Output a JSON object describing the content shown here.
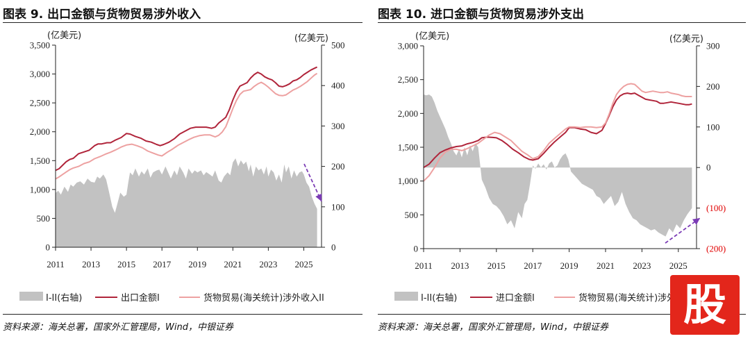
{
  "chart_data": [
    {
      "type": "area+line",
      "title": "图表 9. 出口金额与货物贸易涉外收入",
      "source": "资料来源：海关总署，国家外汇管理局，Wind，中银证券",
      "left_unit": "(亿美元)",
      "right_unit": "(亿美元)",
      "left_ylim": [
        0,
        3500
      ],
      "right_ylim": [
        0,
        500
      ],
      "left_ticks": [
        "0",
        "500",
        "1,000",
        "1,500",
        "2,000",
        "2,500",
        "3,000",
        "3,500"
      ],
      "right_ticks": [
        "0",
        "100",
        "200",
        "300",
        "400",
        "500"
      ],
      "xlim": [
        2011,
        2026
      ],
      "x_ticks": [
        "2011",
        "2013",
        "2015",
        "2017",
        "2019",
        "2021",
        "2023",
        "2025"
      ],
      "series": [
        {
          "name": "I-II(右轴)",
          "axis": "right",
          "kind": "area",
          "color": "#c2c2c2",
          "x": [
            2011.0,
            2011.15,
            2011.3,
            2011.5,
            2011.7,
            2011.85,
            2012.0,
            2012.2,
            2012.4,
            2012.6,
            2012.8,
            2013.0,
            2013.2,
            2013.35,
            2013.5,
            2013.7,
            2013.85,
            2014.0,
            2014.2,
            2014.35,
            2014.5,
            2014.65,
            2014.85,
            2015.0,
            2015.1,
            2015.2,
            2015.35,
            2015.5,
            2015.7,
            2015.85,
            2016.0,
            2016.2,
            2016.35,
            2016.5,
            2016.7,
            2016.85,
            2017.0,
            2017.2,
            2017.35,
            2017.5,
            2017.7,
            2017.85,
            2018.0,
            2018.2,
            2018.35,
            2018.5,
            2018.7,
            2018.85,
            2019.0,
            2019.2,
            2019.35,
            2019.5,
            2019.7,
            2019.85,
            2020.0,
            2020.2,
            2020.35,
            2020.5,
            2020.7,
            2020.85,
            2021.0,
            2021.15,
            2021.3,
            2021.45,
            2021.6,
            2021.75,
            2021.9,
            2022.0,
            2022.15,
            2022.3,
            2022.45,
            2022.6,
            2022.75,
            2022.9,
            2023.0,
            2023.15,
            2023.3,
            2023.45,
            2023.6,
            2023.75,
            2023.9,
            2024.0,
            2024.15,
            2024.3,
            2024.45,
            2024.6,
            2024.75,
            2024.9,
            2025.0,
            2025.15,
            2025.3,
            2025.45,
            2025.6,
            2025.75
          ],
          "values": [
            134,
            140,
            130,
            150,
            137,
            155,
            150,
            160,
            163,
            155,
            170,
            162,
            160,
            175,
            170,
            180,
            168,
            140,
            100,
            85,
            110,
            135,
            125,
            130,
            160,
            185,
            178,
            195,
            175,
            188,
            180,
            195,
            172,
            185,
            190,
            192,
            180,
            200,
            185,
            170,
            190,
            178,
            200,
            185,
            170,
            195,
            182,
            190,
            185,
            190,
            178,
            186,
            180,
            175,
            190,
            165,
            160,
            175,
            185,
            178,
            210,
            220,
            200,
            215,
            205,
            212,
            188,
            205,
            175,
            200,
            190,
            195,
            180,
            200,
            175,
            192,
            185,
            165,
            180,
            160,
            205,
            185,
            200,
            170,
            190,
            175,
            185,
            188,
            180,
            160,
            150,
            125,
            108,
            95
          ]
        },
        {
          "name": "出口金额I",
          "axis": "left",
          "kind": "line",
          "color": "#b0243a",
          "x": [
            2011.0,
            2011.2,
            2011.4,
            2011.6,
            2011.8,
            2012.0,
            2012.3,
            2012.6,
            2012.9,
            2013.2,
            2013.4,
            2013.6,
            2013.9,
            2014.1,
            2014.4,
            2014.7,
            2015.0,
            2015.2,
            2015.5,
            2015.8,
            2016.1,
            2016.4,
            2016.7,
            2016.9,
            2017.1,
            2017.4,
            2017.7,
            2018.0,
            2018.3,
            2018.6,
            2018.9,
            2019.2,
            2019.5,
            2019.8,
            2020.0,
            2020.2,
            2020.4,
            2020.6,
            2020.8,
            2021.0,
            2021.2,
            2021.4,
            2021.6,
            2021.8,
            2022.0,
            2022.2,
            2022.4,
            2022.6,
            2022.8,
            2023.0,
            2023.2,
            2023.4,
            2023.6,
            2023.8,
            2024.0,
            2024.2,
            2024.4,
            2024.6,
            2024.8,
            2025.0,
            2025.2,
            2025.4,
            2025.6,
            2025.75
          ],
          "values": [
            1330,
            1360,
            1420,
            1480,
            1520,
            1540,
            1620,
            1650,
            1680,
            1760,
            1790,
            1790,
            1810,
            1810,
            1860,
            1900,
            1970,
            1960,
            1920,
            1890,
            1840,
            1820,
            1780,
            1760,
            1780,
            1820,
            1880,
            1960,
            2010,
            2060,
            2080,
            2080,
            2080,
            2060,
            2080,
            2150,
            2200,
            2250,
            2380,
            2550,
            2690,
            2790,
            2820,
            2850,
            2930,
            2990,
            3030,
            3000,
            2950,
            2920,
            2900,
            2850,
            2790,
            2780,
            2800,
            2830,
            2880,
            2900,
            2940,
            2990,
            3030,
            3070,
            3100,
            3120
          ]
        },
        {
          "name": "货物贸易(海关统计)涉外收入II",
          "axis": "right",
          "kind": "line",
          "color": "#eda1a1",
          "x": [
            2011.0,
            2011.2,
            2011.4,
            2011.6,
            2011.8,
            2012.0,
            2012.3,
            2012.6,
            2012.9,
            2013.2,
            2013.5,
            2013.8,
            2014.1,
            2014.4,
            2014.7,
            2015.0,
            2015.3,
            2015.6,
            2015.9,
            2016.2,
            2016.5,
            2016.8,
            2017.0,
            2017.3,
            2017.6,
            2017.9,
            2018.2,
            2018.5,
            2018.8,
            2019.1,
            2019.4,
            2019.7,
            2020.0,
            2020.2,
            2020.4,
            2020.6,
            2020.8,
            2021.0,
            2021.2,
            2021.4,
            2021.6,
            2021.8,
            2022.0,
            2022.2,
            2022.4,
            2022.6,
            2022.8,
            2023.0,
            2023.2,
            2023.4,
            2023.6,
            2023.8,
            2024.0,
            2024.2,
            2024.4,
            2024.6,
            2024.8,
            2025.0,
            2025.2,
            2025.4,
            2025.6,
            2025.75
          ],
          "values": [
            169,
            174,
            180,
            186,
            192,
            196,
            200,
            207,
            211,
            219,
            224,
            230,
            235,
            241,
            248,
            253,
            255,
            251,
            246,
            238,
            233,
            228,
            226,
            235,
            243,
            252,
            259,
            266,
            272,
            276,
            278,
            278,
            273,
            277,
            285,
            298,
            320,
            343,
            363,
            378,
            386,
            388,
            390,
            398,
            404,
            408,
            403,
            396,
            388,
            380,
            376,
            375,
            377,
            383,
            389,
            393,
            398,
            404,
            410,
            418,
            426,
            430
          ]
        }
      ],
      "legend": [
        "I-II(右轴)",
        "出口金额I",
        "货物贸易(海关统计)涉外收入II"
      ],
      "annotation": "purple dashed arrow pointing down"
    },
    {
      "type": "area+line",
      "title": "图表 10. 进口金额与货物贸易涉外支出",
      "source": "资料来源：海关总署，国家外汇管理局，Wind，中银证券",
      "left_unit": "(亿美元)",
      "right_unit": "(亿美元)",
      "left_ylim": [
        0,
        3000
      ],
      "right_ylim": [
        -200,
        300
      ],
      "left_ticks": [
        "0",
        "500",
        "1,000",
        "1,500",
        "2,000",
        "2,500",
        "3,000"
      ],
      "right_ticks": [
        "(200)",
        "(100)",
        "0",
        "100",
        "200",
        "300"
      ],
      "right_tick_colors": [
        "#e00000",
        "#e00000",
        "#222222",
        "#222222",
        "#222222",
        "#222222"
      ],
      "xlim": [
        2011,
        2026
      ],
      "x_ticks": [
        "2011",
        "2013",
        "2015",
        "2017",
        "2019",
        "2021",
        "2023",
        "2025"
      ],
      "series": [
        {
          "name": "I-II(右轴)",
          "axis": "right",
          "kind": "area",
          "color": "#c2c2c2",
          "x": [
            2011.0,
            2011.15,
            2011.3,
            2011.45,
            2011.6,
            2011.75,
            2011.9,
            2012.05,
            2012.2,
            2012.35,
            2012.5,
            2012.65,
            2012.8,
            2012.95,
            2013.1,
            2013.25,
            2013.4,
            2013.55,
            2013.7,
            2013.85,
            2014.0,
            2014.2,
            2014.4,
            2014.6,
            2014.8,
            2015.0,
            2015.2,
            2015.4,
            2015.6,
            2015.8,
            2016.0,
            2016.2,
            2016.4,
            2016.55,
            2016.7,
            2016.85,
            2017.0,
            2017.15,
            2017.3,
            2017.45,
            2017.6,
            2017.75,
            2017.9,
            2018.05,
            2018.2,
            2018.35,
            2018.5,
            2018.65,
            2018.8,
            2018.95,
            2019.1,
            2019.3,
            2019.5,
            2019.7,
            2019.9,
            2020.1,
            2020.3,
            2020.5,
            2020.7,
            2020.9,
            2021.1,
            2021.3,
            2021.5,
            2021.7,
            2021.9,
            2022.1,
            2022.3,
            2022.5,
            2022.7,
            2022.9,
            2023.1,
            2023.3,
            2023.5,
            2023.7,
            2023.9,
            2024.1,
            2024.3,
            2024.5,
            2024.7,
            2024.9,
            2025.1,
            2025.3,
            2025.5,
            2025.75
          ],
          "values": [
            180,
            178,
            180,
            175,
            160,
            140,
            125,
            110,
            95,
            75,
            60,
            40,
            30,
            45,
            25,
            50,
            30,
            55,
            40,
            60,
            50,
            -30,
            -50,
            -75,
            -90,
            -95,
            -105,
            -120,
            -140,
            -130,
            -150,
            -110,
            -125,
            -90,
            -80,
            -40,
            5,
            -3,
            10,
            0,
            8,
            -5,
            10,
            15,
            0,
            5,
            20,
            30,
            35,
            20,
            -10,
            -20,
            -30,
            -40,
            -45,
            -50,
            -55,
            -70,
            -75,
            -90,
            -80,
            -70,
            -95,
            -85,
            -60,
            -90,
            -110,
            -125,
            -130,
            -140,
            -145,
            -150,
            -155,
            -152,
            -160,
            -165,
            -170,
            -150,
            -160,
            -140,
            -150,
            -130,
            -115,
            -100
          ]
        },
        {
          "name": "进口金额I",
          "axis": "left",
          "kind": "line",
          "color": "#b0243a",
          "x": [
            2011.0,
            2011.3,
            2011.6,
            2011.9,
            2012.2,
            2012.5,
            2012.8,
            2013.1,
            2013.4,
            2013.7,
            2014.0,
            2014.2,
            2014.5,
            2014.8,
            2015.0,
            2015.3,
            2015.6,
            2015.9,
            2016.2,
            2016.5,
            2016.8,
            2017.0,
            2017.3,
            2017.6,
            2017.9,
            2018.2,
            2018.5,
            2018.8,
            2019.0,
            2019.3,
            2019.6,
            2019.9,
            2020.2,
            2020.5,
            2020.8,
            2021.0,
            2021.2,
            2021.4,
            2021.6,
            2021.8,
            2022.0,
            2022.2,
            2022.4,
            2022.6,
            2022.8,
            2023.0,
            2023.2,
            2023.4,
            2023.6,
            2023.8,
            2024.0,
            2024.2,
            2024.4,
            2024.6,
            2024.8,
            2025.0,
            2025.2,
            2025.4,
            2025.6,
            2025.75
          ],
          "values": [
            1200,
            1250,
            1340,
            1420,
            1460,
            1490,
            1510,
            1520,
            1550,
            1570,
            1600,
            1640,
            1650,
            1645,
            1640,
            1600,
            1540,
            1470,
            1420,
            1360,
            1320,
            1310,
            1330,
            1410,
            1500,
            1580,
            1650,
            1720,
            1790,
            1790,
            1770,
            1760,
            1720,
            1700,
            1750,
            1850,
            1970,
            2100,
            2200,
            2260,
            2290,
            2300,
            2290,
            2300,
            2270,
            2240,
            2210,
            2200,
            2190,
            2180,
            2150,
            2150,
            2160,
            2170,
            2160,
            2150,
            2140,
            2130,
            2130,
            2140
          ]
        },
        {
          "name": "货物贸易(海关统计)涉外支出II",
          "axis": "left",
          "kind": "line",
          "color": "#eda1a1",
          "x": [
            2011.0,
            2011.3,
            2011.6,
            2011.9,
            2012.2,
            2012.5,
            2012.8,
            2013.1,
            2013.4,
            2013.7,
            2014.0,
            2014.3,
            2014.6,
            2014.9,
            2015.2,
            2015.5,
            2015.8,
            2016.1,
            2016.4,
            2016.7,
            2017.0,
            2017.3,
            2017.6,
            2017.9,
            2018.2,
            2018.5,
            2018.8,
            2019.0,
            2019.3,
            2019.6,
            2019.9,
            2020.2,
            2020.5,
            2020.8,
            2021.0,
            2021.2,
            2021.4,
            2021.6,
            2021.8,
            2022.0,
            2022.2,
            2022.4,
            2022.6,
            2022.8,
            2023.0,
            2023.2,
            2023.4,
            2023.6,
            2023.8,
            2024.0,
            2024.2,
            2024.4,
            2024.6,
            2024.8,
            2025.0,
            2025.2,
            2025.4,
            2025.6,
            2025.75
          ],
          "values": [
            1000,
            1080,
            1200,
            1340,
            1430,
            1470,
            1470,
            1450,
            1480,
            1520,
            1560,
            1620,
            1680,
            1720,
            1700,
            1650,
            1600,
            1520,
            1440,
            1390,
            1330,
            1360,
            1450,
            1560,
            1630,
            1700,
            1770,
            1800,
            1800,
            1790,
            1800,
            1800,
            1790,
            1800,
            1860,
            1990,
            2150,
            2280,
            2350,
            2400,
            2430,
            2440,
            2430,
            2380,
            2330,
            2310,
            2320,
            2330,
            2320,
            2310,
            2310,
            2320,
            2300,
            2290,
            2280,
            2260,
            2250,
            2250,
            2250
          ]
        }
      ],
      "legend": [
        "I-II(右轴)",
        "进口金额I",
        "货物贸易(海关统计)涉外支出II"
      ],
      "annotation": "purple dashed arrow pointing up"
    }
  ],
  "watermark": "股"
}
